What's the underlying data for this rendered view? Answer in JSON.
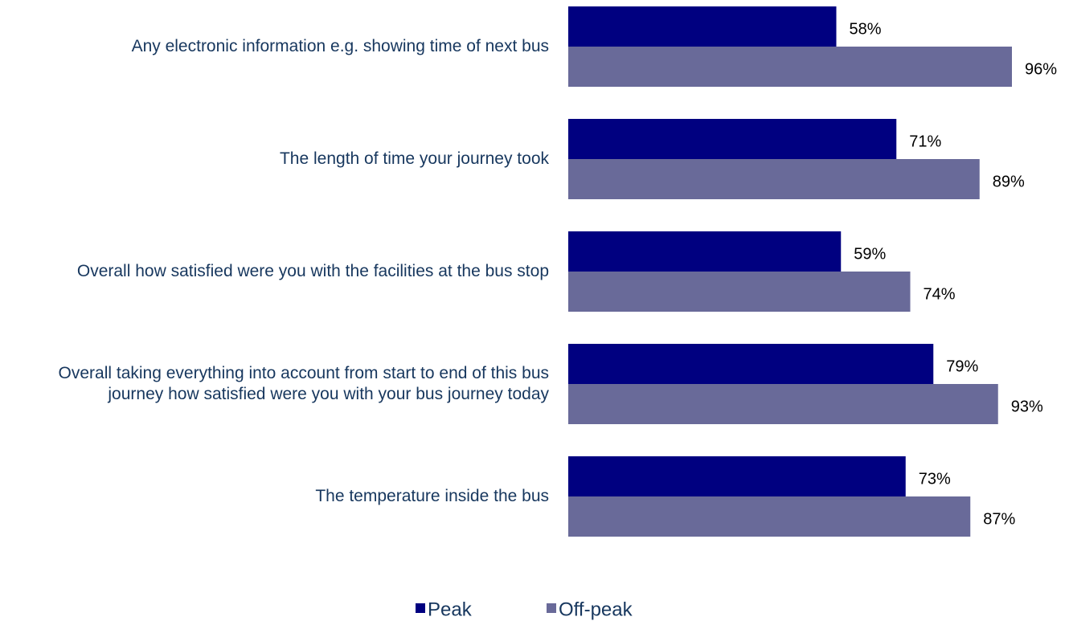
{
  "chart_data": {
    "type": "bar",
    "orientation": "horizontal",
    "categories": [
      "Any electronic information e.g. showing time of next bus",
      "The length of time your journey took",
      "Overall how satisfied were you with the facilities at the bus stop",
      "Overall taking everything into account from start to end of this bus journey how satisfied were you with your bus journey today",
      "The temperature inside the bus"
    ],
    "series": [
      {
        "name": "Peak",
        "color": "#000080",
        "values": [
          58,
          71,
          59,
          79,
          73
        ],
        "value_labels": [
          "58%",
          "71%",
          "59%",
          "79%",
          "73%"
        ]
      },
      {
        "name": "Off-peak",
        "color": "#696a99",
        "values": [
          96,
          89,
          74,
          93,
          87
        ],
        "value_labels": [
          "96%",
          "89%",
          "74%",
          "93%",
          "87%"
        ]
      }
    ],
    "xlim": [
      0,
      100
    ],
    "legend": "bottom"
  }
}
